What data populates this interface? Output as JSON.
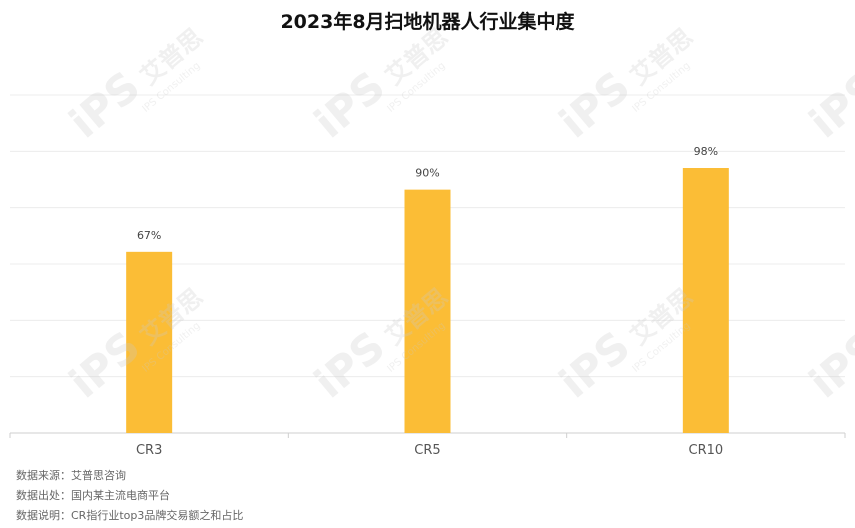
{
  "chart_data": {
    "type": "bar",
    "title": "2023年8月扫地机器人行业集中度",
    "categories": [
      "CR3",
      "CR5",
      "CR10"
    ],
    "values": [
      67,
      90,
      98
    ],
    "data_labels": [
      "67%",
      "90%",
      "98%"
    ],
    "ylim": [
      0,
      125
    ],
    "grid": true,
    "bar_color": "#FBBD36",
    "xlabel": "",
    "ylabel": ""
  },
  "footnotes": {
    "source": "数据来源：艾普思咨询",
    "origin": "数据出处：国内某主流电商平台",
    "explanation": "数据说明：CR指行业top3品牌交易额之和占比"
  },
  "watermark": {
    "main": "iPS",
    "cn": "艾普思",
    "en": "IPS Consulting"
  }
}
